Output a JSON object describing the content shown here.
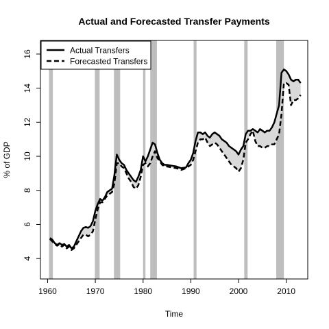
{
  "chart_data": {
    "type": "line",
    "title": "Actual and Forecasted Transfer Payments",
    "xlabel": "Time",
    "ylabel": "% of GDP",
    "xlim": [
      1958.5,
      2014.5
    ],
    "ylim": [
      2.8,
      16.8
    ],
    "x_ticks": [
      1960,
      1970,
      1980,
      1990,
      2000,
      2010
    ],
    "y_ticks": [
      4,
      6,
      8,
      10,
      12,
      14,
      16
    ],
    "grid": false,
    "legend_position": "top-left",
    "gap_fill_color": "#d9d9d9",
    "recession_color": "#bebebe",
    "recessions": [
      [
        1960.3,
        1961.1
      ],
      [
        1969.9,
        1970.9
      ],
      [
        1973.9,
        1975.2
      ],
      [
        1980.0,
        1980.5
      ],
      [
        1981.5,
        1982.9
      ],
      [
        1990.6,
        1991.2
      ],
      [
        2001.2,
        2001.9
      ],
      [
        2007.9,
        2009.5
      ]
    ],
    "series": [
      {
        "name": "Actual Transfers",
        "style": "solid",
        "color": "#000000",
        "points": [
          [
            1960.5,
            5.2
          ],
          [
            1961.0,
            5.1
          ],
          [
            1961.5,
            4.9
          ],
          [
            1962.0,
            4.8
          ],
          [
            1962.5,
            4.9
          ],
          [
            1963.0,
            4.8
          ],
          [
            1963.5,
            4.85
          ],
          [
            1964.0,
            4.7
          ],
          [
            1964.5,
            4.8
          ],
          [
            1965.0,
            4.6
          ],
          [
            1965.5,
            4.7
          ],
          [
            1966.0,
            5.0
          ],
          [
            1966.5,
            5.3
          ],
          [
            1967.0,
            5.6
          ],
          [
            1967.5,
            5.8
          ],
          [
            1968.0,
            5.85
          ],
          [
            1968.5,
            5.8
          ],
          [
            1969.0,
            5.9
          ],
          [
            1969.5,
            6.2
          ],
          [
            1970.0,
            6.8
          ],
          [
            1970.5,
            7.2
          ],
          [
            1971.0,
            7.5
          ],
          [
            1971.5,
            7.4
          ],
          [
            1972.0,
            7.6
          ],
          [
            1972.5,
            7.9
          ],
          [
            1973.0,
            8.0
          ],
          [
            1973.5,
            8.1
          ],
          [
            1974.0,
            8.9
          ],
          [
            1974.5,
            10.1
          ],
          [
            1975.0,
            9.8
          ],
          [
            1975.5,
            9.6
          ],
          [
            1976.0,
            9.5
          ],
          [
            1976.5,
            9.2
          ],
          [
            1977.0,
            9.0
          ],
          [
            1977.5,
            8.8
          ],
          [
            1978.0,
            8.6
          ],
          [
            1978.5,
            8.5
          ],
          [
            1979.0,
            8.8
          ],
          [
            1979.5,
            9.2
          ],
          [
            1980.0,
            10.0
          ],
          [
            1980.5,
            9.7
          ],
          [
            1981.0,
            10.0
          ],
          [
            1981.5,
            10.4
          ],
          [
            1982.0,
            10.8
          ],
          [
            1982.5,
            10.7
          ],
          [
            1983.0,
            10.2
          ],
          [
            1983.5,
            9.8
          ],
          [
            1984.0,
            9.6
          ],
          [
            1984.5,
            9.5
          ],
          [
            1985.0,
            9.5
          ],
          [
            1986.0,
            9.45
          ],
          [
            1987.0,
            9.4
          ],
          [
            1988.0,
            9.3
          ],
          [
            1989.0,
            9.35
          ],
          [
            1989.5,
            9.6
          ],
          [
            1990.0,
            9.8
          ],
          [
            1990.5,
            10.2
          ],
          [
            1991.0,
            10.9
          ],
          [
            1991.5,
            11.4
          ],
          [
            1992.0,
            11.4
          ],
          [
            1992.5,
            11.3
          ],
          [
            1993.0,
            11.4
          ],
          [
            1993.5,
            11.2
          ],
          [
            1994.0,
            11.1
          ],
          [
            1994.5,
            11.3
          ],
          [
            1995.0,
            11.4
          ],
          [
            1995.5,
            11.3
          ],
          [
            1996.0,
            11.2
          ],
          [
            1996.5,
            11.0
          ],
          [
            1997.0,
            10.9
          ],
          [
            1997.5,
            10.8
          ],
          [
            1998.0,
            10.6
          ],
          [
            1998.5,
            10.5
          ],
          [
            1999.0,
            10.4
          ],
          [
            1999.5,
            10.3
          ],
          [
            2000.0,
            10.1
          ],
          [
            2000.5,
            10.4
          ],
          [
            2001.0,
            10.6
          ],
          [
            2001.5,
            11.3
          ],
          [
            2002.0,
            11.5
          ],
          [
            2002.5,
            11.5
          ],
          [
            2003.0,
            11.6
          ],
          [
            2003.5,
            11.5
          ],
          [
            2004.0,
            11.4
          ],
          [
            2004.5,
            11.6
          ],
          [
            2005.0,
            11.5
          ],
          [
            2005.5,
            11.4
          ],
          [
            2006.0,
            11.5
          ],
          [
            2006.5,
            11.5
          ],
          [
            2007.0,
            11.7
          ],
          [
            2007.5,
            12.0
          ],
          [
            2008.0,
            12.5
          ],
          [
            2008.5,
            13.0
          ],
          [
            2009.0,
            14.9
          ],
          [
            2009.5,
            15.1
          ],
          [
            2010.0,
            15.0
          ],
          [
            2010.5,
            14.8
          ],
          [
            2011.0,
            14.5
          ],
          [
            2011.5,
            14.4
          ],
          [
            2012.0,
            14.5
          ],
          [
            2012.5,
            14.5
          ],
          [
            2013.0,
            14.3
          ]
        ]
      },
      {
        "name": "Forecasted Transfers",
        "style": "dashed",
        "color": "#000000",
        "points": [
          [
            1960.5,
            5.15
          ],
          [
            1961.0,
            5.0
          ],
          [
            1961.5,
            4.85
          ],
          [
            1962.0,
            4.75
          ],
          [
            1962.5,
            4.85
          ],
          [
            1963.0,
            4.7
          ],
          [
            1963.5,
            4.8
          ],
          [
            1964.0,
            4.6
          ],
          [
            1964.5,
            4.7
          ],
          [
            1965.0,
            4.5
          ],
          [
            1965.5,
            4.6
          ],
          [
            1966.0,
            4.8
          ],
          [
            1966.5,
            5.0
          ],
          [
            1967.0,
            5.2
          ],
          [
            1967.5,
            5.4
          ],
          [
            1968.0,
            5.4
          ],
          [
            1968.5,
            5.3
          ],
          [
            1969.0,
            5.4
          ],
          [
            1969.5,
            5.6
          ],
          [
            1970.0,
            6.3
          ],
          [
            1970.5,
            6.9
          ],
          [
            1971.0,
            7.3
          ],
          [
            1971.5,
            7.3
          ],
          [
            1972.0,
            7.5
          ],
          [
            1972.5,
            7.7
          ],
          [
            1973.0,
            7.8
          ],
          [
            1973.5,
            7.9
          ],
          [
            1974.0,
            8.4
          ],
          [
            1974.5,
            9.6
          ],
          [
            1975.0,
            9.6
          ],
          [
            1975.5,
            9.4
          ],
          [
            1976.0,
            9.3
          ],
          [
            1976.5,
            9.0
          ],
          [
            1977.0,
            8.7
          ],
          [
            1977.5,
            8.5
          ],
          [
            1978.0,
            8.2
          ],
          [
            1978.5,
            8.1
          ],
          [
            1979.0,
            8.3
          ],
          [
            1979.5,
            8.8
          ],
          [
            1980.0,
            9.5
          ],
          [
            1980.5,
            9.6
          ],
          [
            1981.0,
            9.4
          ],
          [
            1981.5,
            9.6
          ],
          [
            1982.0,
            10.0
          ],
          [
            1982.5,
            10.3
          ],
          [
            1983.0,
            9.9
          ],
          [
            1983.5,
            9.7
          ],
          [
            1984.0,
            9.5
          ],
          [
            1984.5,
            9.4
          ],
          [
            1985.0,
            9.4
          ],
          [
            1986.0,
            9.35
          ],
          [
            1987.0,
            9.3
          ],
          [
            1988.0,
            9.2
          ],
          [
            1989.0,
            9.3
          ],
          [
            1989.5,
            9.4
          ],
          [
            1990.0,
            9.5
          ],
          [
            1990.5,
            9.8
          ],
          [
            1991.0,
            10.3
          ],
          [
            1991.5,
            10.8
          ],
          [
            1992.0,
            11.0
          ],
          [
            1992.5,
            11.0
          ],
          [
            1993.0,
            11.1
          ],
          [
            1993.5,
            10.8
          ],
          [
            1994.0,
            10.6
          ],
          [
            1994.5,
            10.7
          ],
          [
            1995.0,
            10.8
          ],
          [
            1995.5,
            10.7
          ],
          [
            1996.0,
            10.5
          ],
          [
            1996.5,
            10.3
          ],
          [
            1997.0,
            10.1
          ],
          [
            1997.5,
            9.9
          ],
          [
            1998.0,
            9.7
          ],
          [
            1998.5,
            9.5
          ],
          [
            1999.0,
            9.4
          ],
          [
            1999.5,
            9.3
          ],
          [
            2000.0,
            9.1
          ],
          [
            2000.5,
            9.3
          ],
          [
            2001.0,
            9.8
          ],
          [
            2001.5,
            10.8
          ],
          [
            2002.0,
            11.0
          ],
          [
            2002.5,
            11.3
          ],
          [
            2003.0,
            11.5
          ],
          [
            2003.5,
            10.9
          ],
          [
            2004.0,
            10.6
          ],
          [
            2004.5,
            10.6
          ],
          [
            2005.0,
            10.5
          ],
          [
            2005.5,
            10.5
          ],
          [
            2006.0,
            10.6
          ],
          [
            2006.5,
            10.6
          ],
          [
            2007.0,
            10.7
          ],
          [
            2007.5,
            10.7
          ],
          [
            2008.0,
            11.0
          ],
          [
            2008.5,
            11.3
          ],
          [
            2009.0,
            12.5
          ],
          [
            2009.5,
            14.3
          ],
          [
            2010.0,
            14.3
          ],
          [
            2010.5,
            14.2
          ],
          [
            2011.0,
            13.0
          ],
          [
            2011.5,
            13.3
          ],
          [
            2012.0,
            13.3
          ],
          [
            2012.5,
            13.4
          ],
          [
            2013.0,
            13.6
          ]
        ]
      }
    ]
  }
}
